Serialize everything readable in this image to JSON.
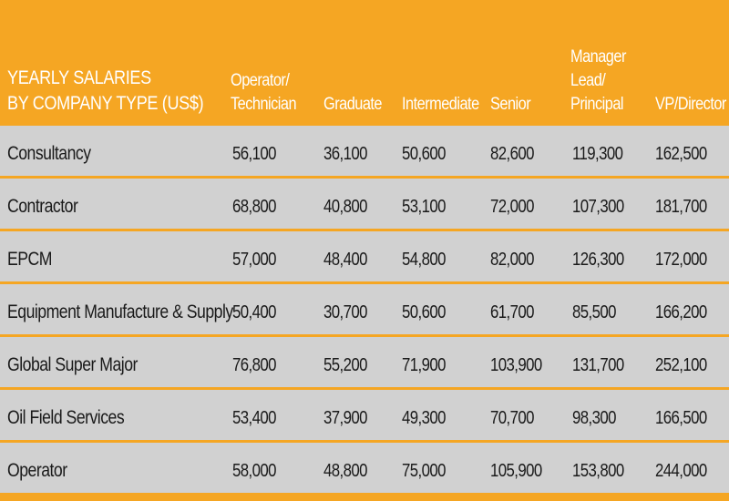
{
  "table": {
    "title_lines": [
      "YEARLY SALARIES",
      "BY COMPANY TYPE (US$)"
    ],
    "columns": [
      {
        "lines": [
          "Operator/",
          "Technician"
        ]
      },
      {
        "lines": [
          "Graduate"
        ]
      },
      {
        "lines": [
          "Intermediate"
        ]
      },
      {
        "lines": [
          "Senior"
        ]
      },
      {
        "lines": [
          "Manager",
          "Lead/",
          "Principal"
        ]
      },
      {
        "lines": [
          "VP/Director"
        ]
      }
    ],
    "rows": [
      {
        "type": "Consultancy",
        "values": [
          "56,100",
          "36,100",
          "50,600",
          "82,600",
          "119,300",
          "162,500"
        ]
      },
      {
        "type": "Contractor",
        "values": [
          "68,800",
          "40,800",
          "53,100",
          "72,000",
          "107,300",
          "181,700"
        ]
      },
      {
        "type": "EPCM",
        "values": [
          "57,000",
          "48,400",
          "54,800",
          "82,000",
          "126,300",
          "172,000"
        ]
      },
      {
        "type": "Equipment Manufacture & Supply",
        "values": [
          "50,400",
          "30,700",
          "50,600",
          "61,700",
          "85,500",
          "166,200"
        ]
      },
      {
        "type": "Global Super Major",
        "values": [
          "76,800",
          "55,200",
          "71,900",
          "103,900",
          "131,700",
          "252,100"
        ]
      },
      {
        "type": "Oil Field Services",
        "values": [
          "53,400",
          "37,900",
          "49,300",
          "70,700",
          "98,300",
          "166,500"
        ]
      },
      {
        "type": "Operator",
        "values": [
          "58,000",
          "48,800",
          "75,000",
          "105,900",
          "153,800",
          "244,000"
        ]
      }
    ]
  },
  "colors": {
    "header_bg": "#f5a623",
    "row_bg": "#d1d1d1",
    "header_text": "#ffffff",
    "body_text": "#1a1a1a"
  }
}
